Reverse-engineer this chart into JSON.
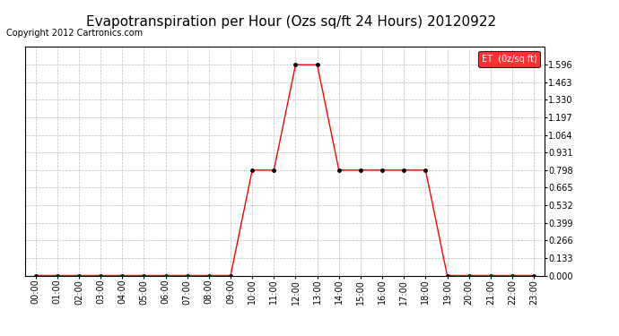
{
  "title": "Evapotranspiration per Hour (Ozs sq/ft 24 Hours) 20120922",
  "copyright": "Copyright 2012 Cartronics.com",
  "legend_label": "ET  (0z/sq ft)",
  "legend_bg": "#ff0000",
  "legend_fg": "#ffffff",
  "hours": [
    "00:00",
    "01:00",
    "02:00",
    "03:00",
    "04:00",
    "05:00",
    "06:00",
    "07:00",
    "08:00",
    "09:00",
    "10:00",
    "11:00",
    "12:00",
    "13:00",
    "14:00",
    "15:00",
    "16:00",
    "17:00",
    "18:00",
    "19:00",
    "20:00",
    "21:00",
    "22:00",
    "23:00"
  ],
  "values": [
    0.0,
    0.0,
    0.0,
    0.0,
    0.0,
    0.0,
    0.0,
    0.0,
    0.0,
    0.0,
    0.798,
    0.798,
    1.596,
    1.596,
    0.798,
    0.798,
    0.798,
    0.798,
    0.798,
    0.0,
    0.0,
    0.0,
    0.0,
    0.0
  ],
  "line_color": "#ff0000",
  "marker_color": "#000000",
  "bg_color": "#ffffff",
  "grid_color": "#bbbbbb",
  "yticks": [
    0.0,
    0.133,
    0.266,
    0.399,
    0.532,
    0.665,
    0.798,
    0.931,
    1.064,
    1.197,
    1.33,
    1.463,
    1.596
  ],
  "ylim": [
    0.0,
    1.73
  ],
  "title_fontsize": 11,
  "tick_fontsize": 7,
  "copyright_fontsize": 7
}
